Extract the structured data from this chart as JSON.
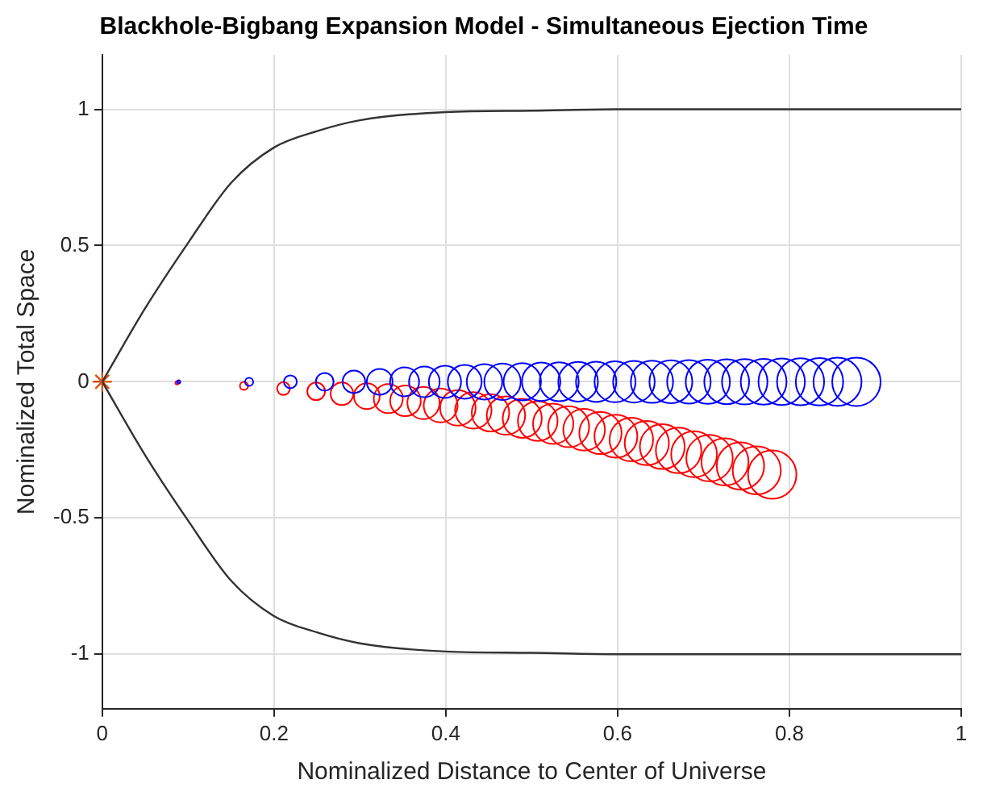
{
  "chart_data": {
    "type": "bubble",
    "title": "Blackhole-Bigbang Expansion Model - Simultaneous Ejection Time",
    "xlabel": "Nominalized Distance to Center of Universe",
    "ylabel": "Nominalized Total Space",
    "xlim": [
      0,
      1
    ],
    "xticks": [
      0,
      0.2,
      0.4,
      0.6,
      0.8,
      1
    ],
    "ylim": [
      -1.2,
      1.2
    ],
    "yticks": [
      -1,
      -0.5,
      0,
      0.5,
      1
    ],
    "grid": true,
    "series": [
      {
        "type": "line",
        "color": "#333333",
        "marker": "none",
        "x": [
          0,
          0.05,
          0.1,
          0.15,
          0.2,
          0.25,
          0.3,
          0.4,
          0.5,
          0.6,
          0.8,
          1
        ],
        "values": [
          0,
          0.27,
          0.51,
          0.73,
          0.86,
          0.92,
          0.96,
          0.99,
          0.995,
          1,
          1,
          1
        ]
      },
      {
        "type": "line",
        "color": "#333333",
        "marker": "none",
        "x": [
          0,
          0.05,
          0.1,
          0.15,
          0.2,
          0.25,
          0.3,
          0.4,
          0.5,
          0.6,
          0.8,
          1
        ],
        "values": [
          0,
          -0.27,
          -0.51,
          -0.73,
          -0.86,
          -0.92,
          -0.96,
          -0.99,
          -0.995,
          -1,
          -1,
          -1
        ]
      },
      {
        "color": "#0000ff",
        "x": [
          0.089,
          0.171,
          0.219,
          0.259,
          0.293,
          0.323,
          0.352,
          0.375,
          0.399,
          0.422,
          0.445,
          0.466,
          0.489,
          0.511,
          0.532,
          0.554,
          0.575,
          0.597,
          0.619,
          0.64,
          0.662,
          0.683,
          0.705,
          0.727,
          0.748,
          0.77,
          0.791,
          0.813,
          0.835,
          0.856,
          0.878
        ],
        "values": [
          0,
          0,
          0,
          0,
          0,
          0,
          0,
          0,
          0,
          0,
          0,
          0,
          0,
          0,
          0,
          0,
          0,
          0,
          0,
          0,
          0,
          0,
          0,
          0,
          0,
          0,
          0,
          0,
          0,
          0,
          0
        ],
        "sizes": [
          0.004,
          0.028,
          0.071,
          0.134,
          0.218,
          0.284,
          0.36,
          0.401,
          0.444,
          0.49,
          0.538,
          0.568,
          0.598,
          0.629,
          0.651,
          0.672,
          0.694,
          0.717,
          0.74,
          0.763,
          0.786,
          0.81,
          0.834,
          0.859,
          0.884,
          0.896,
          0.922,
          0.947,
          0.96,
          0.987,
          1
        ]
      },
      {
        "color": "#ff0000",
        "x": [
          0.087,
          0.165,
          0.211,
          0.249,
          0.279,
          0.308,
          0.333,
          0.353,
          0.374,
          0.394,
          0.414,
          0.432,
          0.452,
          0.47,
          0.489,
          0.507,
          0.525,
          0.543,
          0.561,
          0.58,
          0.598,
          0.616,
          0.634,
          0.652,
          0.671,
          0.689,
          0.707,
          0.725,
          0.743,
          0.762,
          0.78
        ],
        "values": [
          -0.004,
          -0.015,
          -0.025,
          -0.035,
          -0.044,
          -0.053,
          -0.062,
          -0.07,
          -0.078,
          -0.087,
          -0.096,
          -0.105,
          -0.114,
          -0.124,
          -0.134,
          -0.144,
          -0.154,
          -0.165,
          -0.176,
          -0.188,
          -0.2,
          -0.212,
          -0.225,
          -0.238,
          -0.252,
          -0.266,
          -0.28,
          -0.294,
          -0.309,
          -0.325,
          -0.341
        ],
        "sizes": [
          0.004,
          0.028,
          0.071,
          0.134,
          0.218,
          0.284,
          0.36,
          0.401,
          0.444,
          0.49,
          0.538,
          0.568,
          0.598,
          0.629,
          0.651,
          0.672,
          0.694,
          0.717,
          0.74,
          0.763,
          0.786,
          0.81,
          0.834,
          0.859,
          0.884,
          0.896,
          0.922,
          0.947,
          0.96,
          0.987,
          1
        ]
      },
      {
        "type": "scatter",
        "color": "#d95319",
        "marker": "cross",
        "x": [
          0
        ],
        "values": [
          0
        ]
      }
    ]
  }
}
